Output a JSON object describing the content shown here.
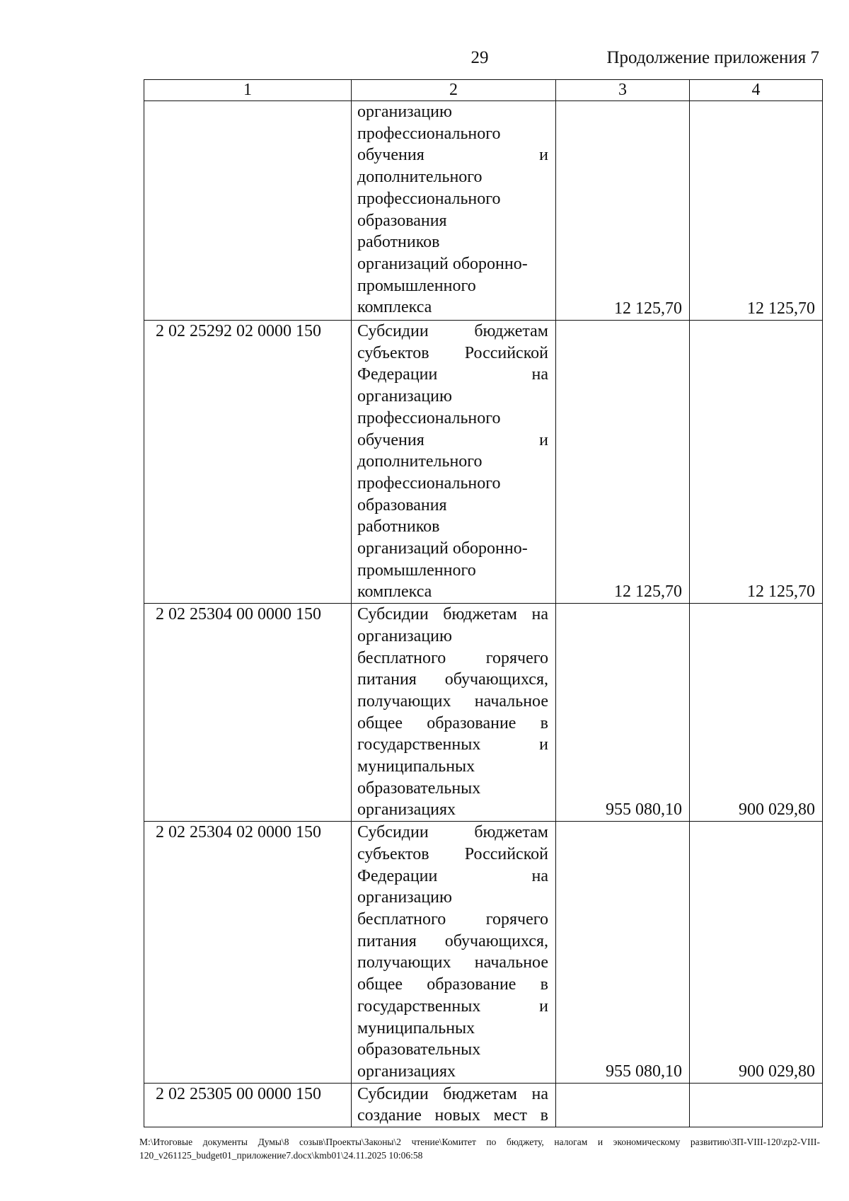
{
  "header": {
    "page_number": "29",
    "continuation": "Продолжение приложения 7"
  },
  "table": {
    "columns": [
      "1",
      "2",
      "3",
      "4"
    ],
    "rows": [
      {
        "code": "",
        "lines": [
          {
            "t": "организацию",
            "j": false
          },
          {
            "t": "профессионального",
            "j": false
          },
          {
            "t": "обучения и",
            "j": true
          },
          {
            "t": "дополнительного",
            "j": false
          },
          {
            "t": "профессионального",
            "j": false
          },
          {
            "t": "образования",
            "j": false
          },
          {
            "t": "работников",
            "j": false
          },
          {
            "t": "организаций оборонно-",
            "j": false
          },
          {
            "t": "промышленного",
            "j": false
          },
          {
            "t": "комплекса",
            "j": false
          }
        ],
        "col3": "12 125,70",
        "col4": "12 125,70"
      },
      {
        "code": "2 02 25292 02 0000 150",
        "lines": [
          {
            "t": "Субсидии бюджетам",
            "j": true
          },
          {
            "t": "субъектов Российской",
            "j": true
          },
          {
            "t": "Федерации на",
            "j": true
          },
          {
            "t": "организацию",
            "j": false
          },
          {
            "t": "профессионального",
            "j": false
          },
          {
            "t": "обучения и",
            "j": true
          },
          {
            "t": "дополнительного",
            "j": false
          },
          {
            "t": "профессионального",
            "j": false
          },
          {
            "t": "образования",
            "j": false
          },
          {
            "t": "работников",
            "j": false
          },
          {
            "t": "организаций оборонно-",
            "j": false
          },
          {
            "t": "промышленного",
            "j": false
          },
          {
            "t": "комплекса",
            "j": false
          }
        ],
        "col3": "12 125,70",
        "col4": "12 125,70"
      },
      {
        "code": "2 02 25304 00 0000 150",
        "lines": [
          {
            "t": "Субсидии бюджетам на",
            "j": true
          },
          {
            "t": "организацию",
            "j": false
          },
          {
            "t": "бесплатного горячего",
            "j": true
          },
          {
            "t": "питания обучающихся,",
            "j": true
          },
          {
            "t": "получающих начальное",
            "j": true
          },
          {
            "t": "общее образование в",
            "j": true
          },
          {
            "t": "государственных и",
            "j": true
          },
          {
            "t": "муниципальных",
            "j": false
          },
          {
            "t": "образовательных",
            "j": false
          },
          {
            "t": "организациях",
            "j": false
          }
        ],
        "col3": "955 080,10",
        "col4": "900 029,80"
      },
      {
        "code": "2 02 25304 02 0000 150",
        "lines": [
          {
            "t": "Субсидии бюджетам",
            "j": true
          },
          {
            "t": "субъектов Российской",
            "j": true
          },
          {
            "t": "Федерации на",
            "j": true
          },
          {
            "t": "организацию",
            "j": false
          },
          {
            "t": "бесплатного горячего",
            "j": true
          },
          {
            "t": "питания обучающихся,",
            "j": true
          },
          {
            "t": "получающих начальное",
            "j": true
          },
          {
            "t": "общее образование в",
            "j": true
          },
          {
            "t": "государственных и",
            "j": true
          },
          {
            "t": "муниципальных",
            "j": false
          },
          {
            "t": "образовательных",
            "j": false
          },
          {
            "t": "организациях",
            "j": false
          }
        ],
        "col3": "955 080,10",
        "col4": "900 029,80"
      },
      {
        "code": "2 02 25305 00 0000 150",
        "lines": [
          {
            "t": "Субсидии бюджетам на",
            "j": true
          },
          {
            "t": "создание новых мест в",
            "j": true
          }
        ],
        "col3": "",
        "col4": ""
      }
    ]
  },
  "footer": {
    "path": "М:\\Итоговые документы Думы\\8 созыв\\Проекты\\Законы\\2 чтение\\Комитет по бюджету, налогам и экономическому развитию\\ЗП-VIII-120\\zp2-VIII-120_v261125_budget01_приложение7.docx\\kmb01\\24.11.2025 10:06:58"
  }
}
